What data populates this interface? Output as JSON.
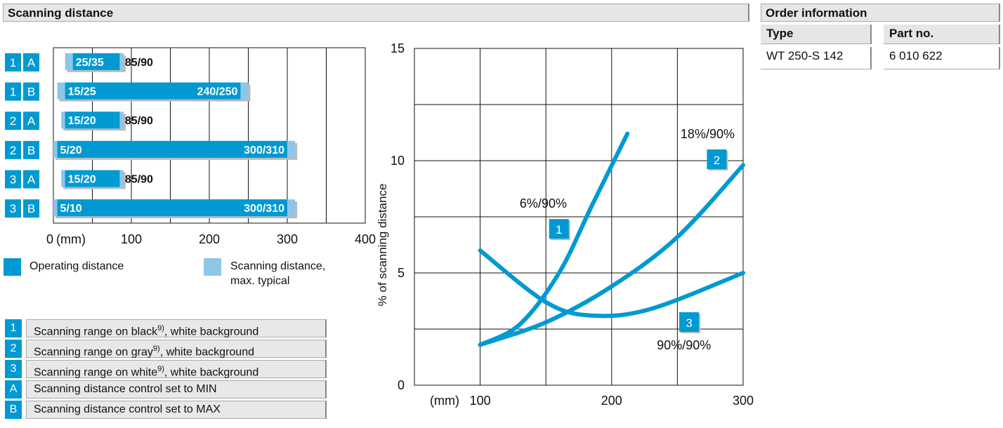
{
  "section_title": "Scanning distance",
  "order": {
    "title": "Order information",
    "headers": [
      "Type",
      "Part no."
    ],
    "rows": [
      [
        "WT 250-S 142",
        "6 010 622"
      ]
    ]
  },
  "legend_colors": {
    "operating": "#0099d1",
    "scanning": "#8ec6e8"
  },
  "distance_legend": {
    "operating": "Operating distance",
    "scanning_line1": "Scanning distance,",
    "scanning_line2": "max. typical"
  },
  "key_legend": [
    {
      "badge": "1",
      "text": "Scanning range on black",
      "sup": "9)",
      "tail": ", white background"
    },
    {
      "badge": "2",
      "text": "Scanning range on gray",
      "sup": "9)",
      "tail": ", white background"
    },
    {
      "badge": "3",
      "text": "Scanning range on white",
      "sup": "9)",
      "tail": ", white background"
    },
    {
      "badge": "A",
      "text": "Scanning distance control set to MIN",
      "sup": "",
      "tail": ""
    },
    {
      "badge": "B",
      "text": "Scanning distance control set to MAX",
      "sup": "",
      "tail": ""
    }
  ],
  "chart_data": [
    {
      "type": "bar",
      "xlabel": "(mm)",
      "xlim": [
        0,
        400
      ],
      "x_ticks": [
        "0",
        "100",
        "200",
        "300",
        "400"
      ],
      "bars": [
        {
          "row": [
            "1",
            "A"
          ],
          "op_start": 25,
          "op_end": 85,
          "sc_start": 15,
          "sc_end": 90,
          "left_label": "25/35",
          "right_label": "85/90"
        },
        {
          "row": [
            "1",
            "B"
          ],
          "op_start": 15,
          "op_end": 240,
          "sc_start": 5,
          "sc_end": 250,
          "left_label": "15/25",
          "right_label": "240/250"
        },
        {
          "row": [
            "2",
            "A"
          ],
          "op_start": 15,
          "op_end": 85,
          "sc_start": 10,
          "sc_end": 90,
          "left_label": "15/20",
          "right_label": "85/90"
        },
        {
          "row": [
            "2",
            "B"
          ],
          "op_start": 5,
          "op_end": 300,
          "sc_start": 0,
          "sc_end": 310,
          "left_label": "5/20",
          "right_label": "300/310"
        },
        {
          "row": [
            "3",
            "A"
          ],
          "op_start": 15,
          "op_end": 85,
          "sc_start": 10,
          "sc_end": 90,
          "left_label": "15/20",
          "right_label": "85/90"
        },
        {
          "row": [
            "3",
            "B"
          ],
          "op_start": 5,
          "op_end": 300,
          "sc_start": 0,
          "sc_end": 310,
          "left_label": "5/10",
          "right_label": "300/310"
        }
      ]
    },
    {
      "type": "line",
      "ylabel": "% of scanning distance",
      "xlabel": "(mm)",
      "xlim": [
        50,
        300
      ],
      "ylim": [
        0,
        15
      ],
      "x_ticks": [
        "100",
        "200",
        "300"
      ],
      "y_ticks": [
        "0",
        "5",
        "10",
        "15"
      ],
      "series": [
        {
          "name": "6%/90%",
          "badge": "1",
          "x": [
            100,
            130,
            160,
            185,
            212
          ],
          "y": [
            1.8,
            2.7,
            5.0,
            8.0,
            11.2
          ]
        },
        {
          "name": "18%/90%",
          "badge": "2",
          "x": [
            100,
            150,
            200,
            250,
            300
          ],
          "y": [
            1.8,
            2.8,
            4.4,
            6.6,
            9.8
          ]
        },
        {
          "name": "90%/90%",
          "badge": "3",
          "x": [
            100,
            150,
            185,
            230,
            300
          ],
          "y": [
            6.0,
            3.7,
            3.1,
            3.4,
            5.0
          ]
        }
      ]
    }
  ]
}
